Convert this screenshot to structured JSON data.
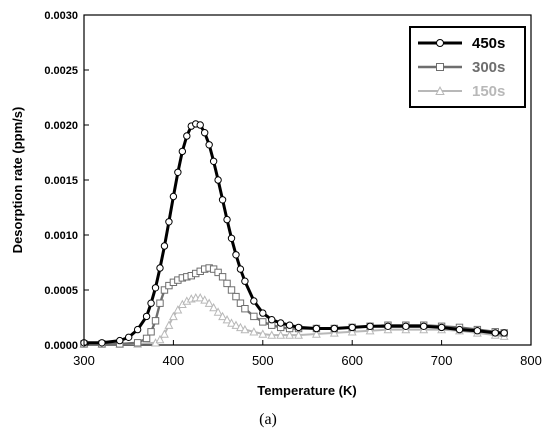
{
  "chart_data": {
    "type": "line",
    "title": "",
    "xlabel": "Temperature (K)",
    "ylabel": "Desorption rate (ppm/s)",
    "xlim": [
      300,
      800
    ],
    "ylim": [
      0,
      0.003
    ],
    "xticks": [
      "300",
      "400",
      "500",
      "600",
      "700",
      "800"
    ],
    "yticks": [
      "0.0000",
      "0.0005",
      "0.0010",
      "0.0015",
      "0.0020",
      "0.0025",
      "0.0030"
    ],
    "grid": false,
    "legend_position": "top-right",
    "caption": "(a)",
    "series": [
      {
        "name": "450s",
        "color": "#000000",
        "marker": "circle",
        "x": [
          300,
          320,
          340,
          350,
          360,
          370,
          375,
          380,
          385,
          390,
          395,
          400,
          405,
          410,
          415,
          420,
          425,
          430,
          435,
          440,
          445,
          450,
          455,
          460,
          465,
          470,
          475,
          480,
          490,
          500,
          510,
          520,
          530,
          540,
          560,
          580,
          600,
          620,
          640,
          660,
          680,
          700,
          720,
          740,
          760,
          770
        ],
        "y": [
          2e-05,
          2e-05,
          4e-05,
          7e-05,
          0.00014,
          0.00026,
          0.00038,
          0.00052,
          0.0007,
          0.0009,
          0.00112,
          0.00135,
          0.00157,
          0.00176,
          0.0019,
          0.00199,
          0.00201,
          0.002,
          0.00193,
          0.00182,
          0.00167,
          0.0015,
          0.00132,
          0.00114,
          0.00097,
          0.00082,
          0.00069,
          0.00058,
          0.0004,
          0.00029,
          0.00023,
          0.0002,
          0.00018,
          0.00016,
          0.00015,
          0.00015,
          0.00016,
          0.00017,
          0.00017,
          0.00017,
          0.00017,
          0.00016,
          0.00014,
          0.00013,
          0.00011,
          0.00011
        ]
      },
      {
        "name": "300s",
        "color": "#6e6e6e",
        "marker": "square",
        "x": [
          300,
          320,
          340,
          360,
          370,
          375,
          380,
          385,
          390,
          395,
          400,
          405,
          410,
          415,
          420,
          425,
          430,
          435,
          440,
          445,
          450,
          455,
          460,
          465,
          470,
          475,
          480,
          490,
          500,
          510,
          520,
          530,
          540,
          560,
          580,
          600,
          620,
          640,
          660,
          680,
          700,
          720,
          740,
          760,
          770
        ],
        "y": [
          1e-05,
          1e-05,
          1e-05,
          2e-05,
          6e-05,
          0.00012,
          0.00022,
          0.00038,
          0.0005,
          0.00054,
          0.00057,
          0.00059,
          0.00061,
          0.00062,
          0.00063,
          0.00065,
          0.00067,
          0.00069,
          0.0007,
          0.00069,
          0.00066,
          0.00062,
          0.00056,
          0.0005,
          0.00044,
          0.00038,
          0.00033,
          0.00026,
          0.00021,
          0.00018,
          0.00016,
          0.00015,
          0.00015,
          0.00015,
          0.00015,
          0.00016,
          0.00017,
          0.00018,
          0.00018,
          0.00018,
          0.00017,
          0.00016,
          0.00014,
          0.00012,
          0.00011
        ]
      },
      {
        "name": "150s",
        "color": "#b8b8b8",
        "marker": "triangle",
        "x": [
          300,
          320,
          340,
          360,
          380,
          385,
          390,
          395,
          400,
          405,
          410,
          415,
          420,
          425,
          430,
          435,
          440,
          445,
          450,
          455,
          460,
          465,
          470,
          475,
          480,
          490,
          500,
          510,
          520,
          530,
          540,
          560,
          580,
          600,
          620,
          640,
          660,
          680,
          700,
          720,
          740,
          760,
          770
        ],
        "y": [
          1e-05,
          1e-05,
          1e-05,
          1e-05,
          2e-05,
          5e-05,
          0.0001,
          0.00018,
          0.00026,
          0.00032,
          0.00037,
          0.0004,
          0.00042,
          0.00043,
          0.00043,
          0.00041,
          0.00038,
          0.00034,
          0.0003,
          0.00026,
          0.00023,
          0.0002,
          0.00018,
          0.00016,
          0.00014,
          0.00012,
          0.0001,
          9e-05,
          9e-05,
          9e-05,
          9e-05,
          0.0001,
          0.00011,
          0.00012,
          0.00013,
          0.00014,
          0.00014,
          0.00014,
          0.00014,
          0.00013,
          0.00011,
          9e-05,
          8e-05
        ]
      }
    ]
  }
}
